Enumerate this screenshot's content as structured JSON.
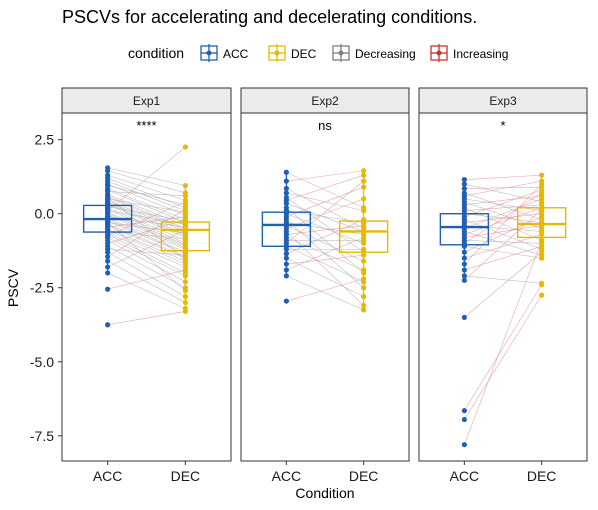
{
  "chart_data": {
    "type": "box-paired",
    "title": "PSCVs for accelerating and decelerating conditions.",
    "xlabel": "Condition",
    "ylabel": "PSCV",
    "ylim": [
      -8.35,
      3.4
    ],
    "yticks": [
      2.5,
      0.0,
      -2.5,
      -5.0,
      -7.5
    ],
    "ytick_labels": [
      "2.5",
      "0.0",
      "-2.5",
      "-5.0",
      "-7.5"
    ],
    "categories": [
      "ACC",
      "DEC"
    ],
    "legend": {
      "title": "condition",
      "position": "top",
      "items": [
        {
          "label": "ACC",
          "color": "#1f5fb4"
        },
        {
          "label": "DEC",
          "color": "#e7b800"
        },
        {
          "label": "Decreasing",
          "color": "#808080"
        },
        {
          "label": "Increasing",
          "color": "#cc3333"
        }
      ]
    },
    "colors": {
      "ACC": "#1f5fb4",
      "DEC": "#e7b800",
      "Decreasing": "#aaaaaa",
      "Increasing": "#e08b8b"
    },
    "panels": [
      {
        "name": "Exp1",
        "significance": "****",
        "box": {
          "ACC": {
            "q1": -0.62,
            "median": -0.18,
            "q3": 0.28,
            "whisker_low": -2.0,
            "whisker_high": 1.55
          },
          "DEC": {
            "q1": -1.25,
            "median": -0.55,
            "q3": -0.28,
            "whisker_low": -3.1,
            "whisker_high": 0.95
          }
        },
        "pairs": [
          [
            1.55,
            0.95
          ],
          [
            1.45,
            0.7
          ],
          [
            1.3,
            0.45
          ],
          [
            1.2,
            0.2
          ],
          [
            1.1,
            0.1
          ],
          [
            1.0,
            -0.05
          ],
          [
            0.95,
            0.3
          ],
          [
            0.85,
            -0.2
          ],
          [
            0.8,
            -0.3
          ],
          [
            0.75,
            0.6
          ],
          [
            0.65,
            -0.4
          ],
          [
            0.6,
            -0.5
          ],
          [
            0.55,
            -0.55
          ],
          [
            0.5,
            0.05
          ],
          [
            0.45,
            -0.6
          ],
          [
            0.4,
            -0.7
          ],
          [
            0.35,
            -0.75
          ],
          [
            0.3,
            -0.8
          ],
          [
            0.25,
            -0.25
          ],
          [
            0.2,
            -0.9
          ],
          [
            0.15,
            -1.0
          ],
          [
            0.1,
            -0.35
          ],
          [
            0.05,
            -1.05
          ],
          [
            0.0,
            -1.1
          ],
          [
            -0.05,
            -1.15
          ],
          [
            -0.1,
            -0.45
          ],
          [
            -0.15,
            -1.2
          ],
          [
            -0.2,
            -1.3
          ],
          [
            -0.25,
            -1.35
          ],
          [
            -0.3,
            -0.65
          ],
          [
            -0.35,
            -1.45
          ],
          [
            -0.4,
            -1.5
          ],
          [
            -0.45,
            -0.1
          ],
          [
            -0.5,
            -1.6
          ],
          [
            -0.55,
            -1.7
          ],
          [
            -0.6,
            -0.85
          ],
          [
            -0.65,
            -1.8
          ],
          [
            -0.7,
            -2.0
          ],
          [
            -0.75,
            0.4
          ],
          [
            -0.8,
            -2.1
          ],
          [
            -0.9,
            -2.3
          ],
          [
            -1.0,
            -0.2
          ],
          [
            -1.1,
            -2.5
          ],
          [
            -1.2,
            -1.4
          ],
          [
            -1.3,
            -2.8
          ],
          [
            -1.45,
            0.15
          ],
          [
            -1.6,
            -3.0
          ],
          [
            -1.8,
            -0.55
          ],
          [
            -2.0,
            -3.2
          ],
          [
            -2.55,
            -1.9
          ],
          [
            -3.75,
            -3.3
          ],
          [
            0.1,
            2.25
          ],
          [
            -0.3,
            -2.6
          ],
          [
            0.55,
            -1.55
          ]
        ]
      },
      {
        "name": "Exp2",
        "significance": "ns",
        "box": {
          "ACC": {
            "q1": -1.1,
            "median": -0.38,
            "q3": 0.05,
            "whisker_low": -2.1,
            "whisker_high": 1.4
          },
          "DEC": {
            "q1": -1.3,
            "median": -0.6,
            "q3": -0.25,
            "whisker_low": -3.25,
            "whisker_high": 1.45
          }
        },
        "pairs": [
          [
            1.4,
            0.2
          ],
          [
            1.1,
            1.45
          ],
          [
            0.85,
            -0.5
          ],
          [
            0.7,
            0.1
          ],
          [
            0.55,
            -1.3
          ],
          [
            0.45,
            1.3
          ],
          [
            0.35,
            -0.6
          ],
          [
            0.2,
            -2.0
          ],
          [
            0.1,
            -0.3
          ],
          [
            0.0,
            -1.0
          ],
          [
            -0.1,
            0.9
          ],
          [
            -0.2,
            -2.5
          ],
          [
            -0.3,
            -0.7
          ],
          [
            -0.4,
            -1.6
          ],
          [
            -0.5,
            0.5
          ],
          [
            -0.6,
            -3.1
          ],
          [
            -0.7,
            -0.4
          ],
          [
            -0.8,
            -1.9
          ],
          [
            -0.9,
            -0.9
          ],
          [
            -1.0,
            1.1
          ],
          [
            -1.1,
            -2.3
          ],
          [
            -1.2,
            -1.2
          ],
          [
            -1.35,
            -0.2
          ],
          [
            -1.5,
            -2.8
          ],
          [
            -1.7,
            -1.4
          ],
          [
            -1.9,
            -0.8
          ],
          [
            -2.1,
            -3.25
          ],
          [
            -2.95,
            -2.2
          ]
        ]
      },
      {
        "name": "Exp3",
        "significance": "*",
        "box": {
          "ACC": {
            "q1": -1.05,
            "median": -0.45,
            "q3": 0.0,
            "whisker_low": -2.25,
            "whisker_high": 1.15
          },
          "DEC": {
            "q1": -0.8,
            "median": -0.35,
            "q3": 0.2,
            "whisker_low": -1.55,
            "whisker_high": 1.3
          }
        },
        "pairs": [
          [
            1.15,
            1.3
          ],
          [
            1.0,
            0.4
          ],
          [
            0.85,
            0.9
          ],
          [
            0.7,
            -0.2
          ],
          [
            0.6,
            1.1
          ],
          [
            0.5,
            0.1
          ],
          [
            0.4,
            -0.5
          ],
          [
            0.3,
            0.6
          ],
          [
            0.2,
            -0.9
          ],
          [
            0.1,
            0.3
          ],
          [
            0.0,
            -0.3
          ],
          [
            -0.1,
            0.8
          ],
          [
            -0.2,
            -1.2
          ],
          [
            -0.3,
            0.0
          ],
          [
            -0.4,
            -0.6
          ],
          [
            -0.5,
            0.5
          ],
          [
            -0.6,
            -1.4
          ],
          [
            -0.7,
            0.2
          ],
          [
            -0.8,
            -0.4
          ],
          [
            -0.9,
            -1.0
          ],
          [
            -1.0,
            0.7
          ],
          [
            -1.1,
            -1.5
          ],
          [
            -1.3,
            -0.1
          ],
          [
            -1.5,
            -0.7
          ],
          [
            -1.7,
            1.0
          ],
          [
            -1.9,
            -1.1
          ],
          [
            -2.1,
            -2.35
          ],
          [
            -2.25,
            0.15
          ],
          [
            -3.5,
            -1.3
          ],
          [
            -6.65,
            -2.4
          ],
          [
            -6.95,
            -2.75
          ],
          [
            -7.8,
            -0.9
          ]
        ]
      }
    ]
  }
}
